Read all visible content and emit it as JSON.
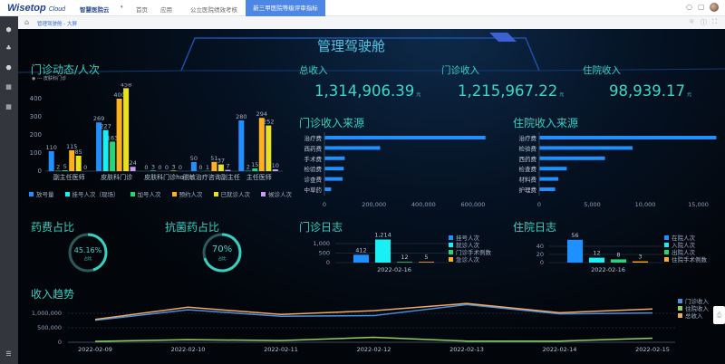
{
  "topbar": {
    "brand": "Wisetop",
    "brand_sub": "Cloud",
    "product": "智慧医院云",
    "nav": [
      "首页",
      "应用",
      "公立医院绩效考核"
    ],
    "active_nav": "新三甲医院等级评审指标",
    "icons": [
      "search-icon",
      "mail-icon",
      "user-avatar"
    ]
  },
  "breadcrumb": {
    "home_icon": "home-icon",
    "current": "管理驾驶舱 - 大屏",
    "tools": [
      "lightbulb-icon",
      "info-icon",
      "fullscreen-icon"
    ]
  },
  "sidebar": {
    "icons": [
      "module-icon",
      "cluster-icon",
      "shield-icon",
      "layout-icon",
      "layout-icon",
      "collapse-icon"
    ]
  },
  "header": {
    "title": "管理驾驶舱"
  },
  "colors": {
    "accent": "#35d0c0",
    "blue": "#1e90ff",
    "cyan": "#19f0f5",
    "green": "#23d67a",
    "orange": "#ffb020",
    "yellow": "#e8e020",
    "purple": "#c89cf0"
  },
  "kpis": [
    {
      "label": "总收入",
      "value": "1,314,906.39",
      "unit": "元"
    },
    {
      "label": "门诊收入",
      "value": "1,215,967.22",
      "unit": "元"
    },
    {
      "label": "住院收入",
      "value": "98,939.17",
      "unit": "元"
    }
  ],
  "ratios": [
    {
      "title": "药费占比",
      "value": "45.16%",
      "fraction": 0.4516,
      "sub": "占比"
    },
    {
      "title": "抗菌药占比",
      "value": "70%",
      "fraction": 0.7,
      "sub": "占比"
    }
  ],
  "chart_data": [
    {
      "id": "outpatient_dynamics",
      "type": "bar",
      "title": "门诊动态/人次",
      "filter_label": "皮肤科门诊",
      "categories": [
        "副主任医师",
        "皮肤科门诊",
        "皮肤科门诊ho",
        "脱敏治疗咨询副主任",
        "主任医师"
      ],
      "ylim": [
        0,
        480
      ],
      "yticks": [
        0,
        100,
        200,
        300,
        400
      ],
      "series": [
        {
          "name": "放号量",
          "values": [
            110,
            269,
            0,
            50,
            280
          ]
        },
        {
          "name": "挂号人次（现场）",
          "values": [
            2,
            227,
            3,
            0,
            2
          ]
        },
        {
          "name": "加号人次",
          "values": [
            5,
            163,
            0,
            1,
            15
          ]
        },
        {
          "name": "预约人次",
          "values": [
            115,
            400,
            0,
            51,
            294
          ]
        },
        {
          "name": "已就诊人次",
          "values": [
            85,
            458,
            3,
            37,
            252
          ]
        },
        {
          "name": "候诊人次",
          "values": [
            0,
            24,
            0,
            7,
            10
          ]
        }
      ]
    },
    {
      "id": "outpatient_income_source",
      "type": "bar",
      "orientation": "horizontal",
      "title": "门诊收入来源",
      "categories": [
        "治疗费",
        "西药费",
        "手术费",
        "检验费",
        "诊查费",
        "中草药"
      ],
      "values": [
        650000,
        225000,
        82000,
        78000,
        73000,
        27000
      ],
      "xlim": [
        0,
        700000
      ],
      "xticks": [
        "0",
        "200,000",
        "400,000",
        "600,000"
      ],
      "xtick_values": [
        0,
        200000,
        400000,
        600000
      ]
    },
    {
      "id": "inpatient_income_source",
      "type": "bar",
      "orientation": "horizontal",
      "title": "住院收入来源",
      "categories": [
        "治疗费",
        "检验费",
        "西药费",
        "检查费",
        "材料费",
        "护理费"
      ],
      "values": [
        16700,
        8800,
        6200,
        2600,
        1800,
        1500
      ],
      "xlim": [
        0,
        16800
      ],
      "xticks": [
        "0",
        "5,000",
        "10,000",
        "15,000"
      ],
      "xtick_values": [
        0,
        5000,
        10000,
        15000
      ]
    },
    {
      "id": "outpatient_log",
      "type": "bar",
      "title": "门诊日志",
      "categories": [
        "2022-02-16"
      ],
      "ylim": [
        0,
        1300
      ],
      "yticks": [
        "0",
        "500",
        "1,000"
      ],
      "ytick_values": [
        0,
        500,
        1000
      ],
      "series": [
        {
          "name": "挂号人次",
          "values": [
            412
          ],
          "label": "412"
        },
        {
          "name": "就诊人次",
          "values": [
            1214
          ],
          "label": "1,214"
        },
        {
          "name": "门诊手术例数",
          "values": [
            12
          ],
          "label": "12"
        },
        {
          "name": "急诊人次",
          "values": [
            5
          ],
          "label": "5"
        }
      ]
    },
    {
      "id": "inpatient_log",
      "type": "bar",
      "title": "住院日志",
      "categories": [
        "2022-02-16"
      ],
      "ylim": [
        0,
        60
      ],
      "yticks": [
        "0",
        "20",
        "40"
      ],
      "ytick_values": [
        0,
        20,
        40
      ],
      "series": [
        {
          "name": "在院人次",
          "values": [
            56
          ],
          "label": "56"
        },
        {
          "name": "入院人次",
          "values": [
            12
          ],
          "label": "12"
        },
        {
          "name": "出院人次",
          "values": [
            8
          ],
          "label": "8"
        },
        {
          "name": "住院手术例数",
          "values": [
            3
          ],
          "label": "3"
        }
      ]
    },
    {
      "id": "income_trend",
      "type": "line",
      "title": "收入趋势",
      "x": [
        "2022-02-09",
        "2022-02-10",
        "2022-02-11",
        "2022-02-12",
        "2022-02-13",
        "2022-02-14",
        "2022-02-15"
      ],
      "ylim": [
        0,
        1500000
      ],
      "yticks": [
        "0",
        "500,000",
        "1,000,000"
      ],
      "ytick_values": [
        0,
        500000,
        1000000
      ],
      "series": [
        {
          "name": "门诊收入",
          "values": [
            760000,
            1120000,
            900000,
            920000,
            1300000,
            980000,
            1010000
          ]
        },
        {
          "name": "住院收入",
          "values": [
            30000,
            90000,
            60000,
            170000,
            40000,
            40000,
            140000
          ]
        },
        {
          "name": "总收入",
          "values": [
            790000,
            1210000,
            960000,
            1090000,
            1340000,
            1020000,
            1150000
          ]
        }
      ]
    }
  ]
}
